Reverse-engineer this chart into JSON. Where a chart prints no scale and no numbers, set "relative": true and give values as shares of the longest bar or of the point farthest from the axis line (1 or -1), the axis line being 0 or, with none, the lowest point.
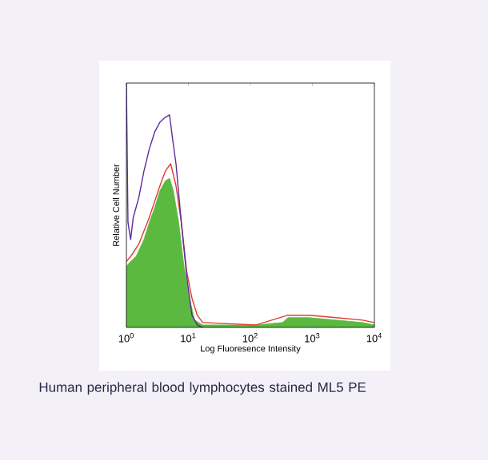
{
  "chart_data": {
    "type": "line",
    "relative": true,
    "log": "x",
    "grid": false,
    "marker": "none",
    "xlabel": "Log Fluoresence Intensity",
    "ylabel": "Relative Cell Number",
    "xlim": [
      1,
      10000
    ],
    "xticks": [
      {
        "value": 1,
        "label": "10$^{0}$"
      },
      {
        "value": 10,
        "label": "10$^{1}$"
      },
      {
        "value": 100,
        "label": "10$^{2}$"
      },
      {
        "value": 1000,
        "label": "10$^{3}$"
      },
      {
        "value": 10000,
        "label": "10$^{4}$"
      }
    ],
    "annotations": [
      "Human peripheral blood lymphocytes stained ML5 PE"
    ],
    "series": [
      {
        "type": "area",
        "color": "#5cb940",
        "x": [
          1,
          1.17,
          1.43,
          1.92,
          2.34,
          2.86,
          3.48,
          4.25,
          4.97,
          5.71,
          6.97,
          8.49,
          10.4,
          12.6,
          17,
          123,
          331,
          404,
          891,
          2400,
          6460,
          10000
        ],
        "values": [
          0.25,
          0.27,
          0.29,
          0.36,
          0.43,
          0.49,
          0.56,
          0.6,
          0.61,
          0.56,
          0.43,
          0.25,
          0.12,
          0.03,
          0.01,
          0.01,
          0.02,
          0.04,
          0.04,
          0.03,
          0.02,
          0.01
        ]
      },
      {
        "color": "#e03c31",
        "x": [
          1,
          1.17,
          1.58,
          2.34,
          3.48,
          4.25,
          5.17,
          6.31,
          7.69,
          9.38,
          11.4,
          13.9,
          17,
          123,
          404,
          891,
          2400,
          6460,
          10000
        ],
        "values": [
          0.27,
          0.29,
          0.34,
          0.45,
          0.58,
          0.64,
          0.67,
          0.58,
          0.43,
          0.23,
          0.12,
          0.05,
          0.02,
          0.01,
          0.05,
          0.05,
          0.04,
          0.03,
          0.02
        ]
      },
      {
        "color": "#5b2d9e",
        "x": [
          1,
          1.06,
          1.17,
          1.29,
          1.58,
          1.92,
          2.34,
          2.86,
          3.48,
          4.25,
          4.97,
          5.5,
          6.31,
          7.69,
          9.38,
          11.4,
          13.9,
          17
        ],
        "values": [
          1,
          0.43,
          0.36,
          0.45,
          0.53,
          0.64,
          0.73,
          0.8,
          0.84,
          0.86,
          0.87,
          0.78,
          0.67,
          0.43,
          0.21,
          0.05,
          0.01,
          0
        ]
      }
    ]
  }
}
